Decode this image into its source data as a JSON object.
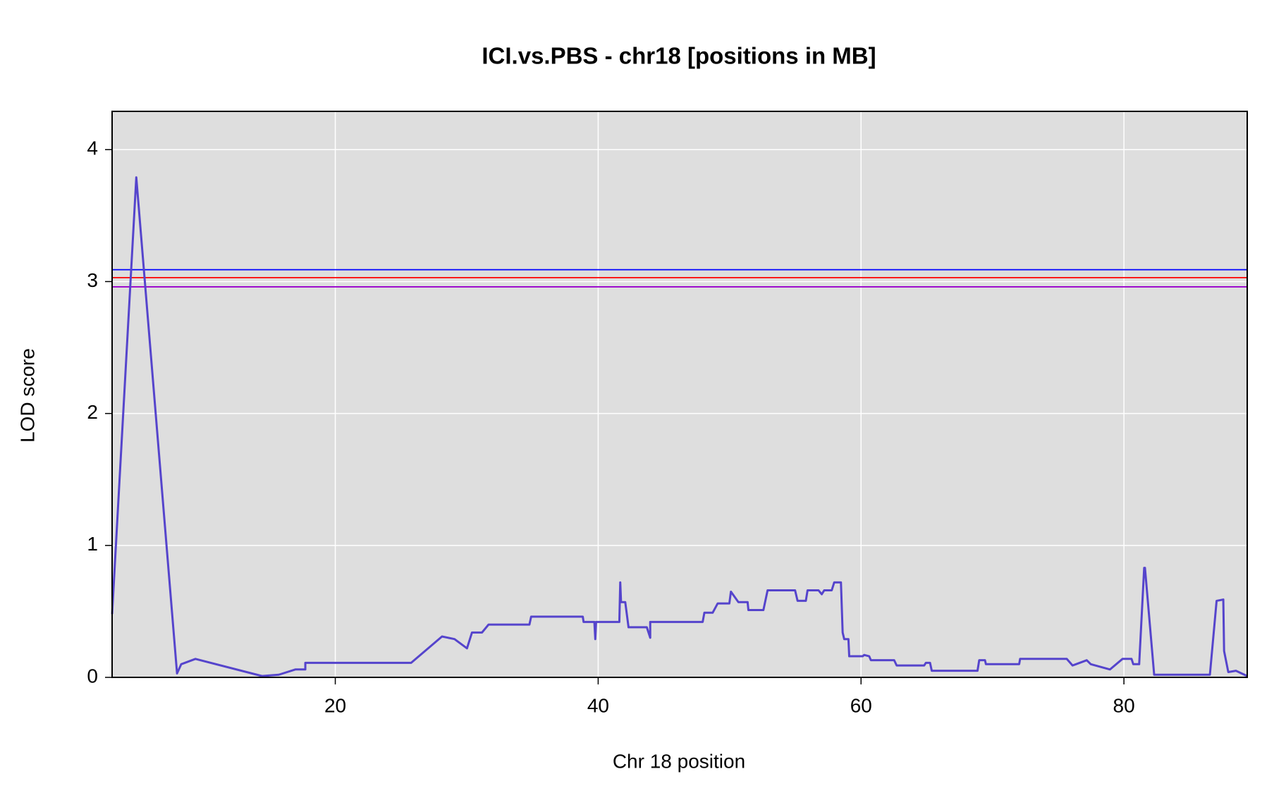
{
  "chart_data": {
    "type": "line",
    "title": "ICI.vs.PBS - chr18 [positions in MB]",
    "x_label": "Chr 18 position",
    "y_label": "LOD score",
    "x": [
      3.02,
      4.86,
      7.96,
      8.28,
      9.36,
      14.43,
      15.7,
      16.96,
      17.72,
      17.72,
      25.77,
      28.12,
      29.07,
      30.02,
      30.4,
      31.16,
      31.66,
      34.77,
      34.9,
      38.83,
      38.89,
      39.71,
      39.78,
      39.84,
      41.61,
      41.68,
      41.74,
      42.06,
      42.31,
      43.7,
      43.96,
      43.96,
      47.95,
      48.08,
      48.71,
      49.09,
      49.98,
      50.1,
      50.67,
      51.37,
      51.43,
      52.57,
      52.89,
      54.98,
      55.17,
      55.8,
      55.93,
      56.76,
      57.01,
      57.2,
      57.77,
      57.96,
      58.47,
      58.6,
      58.72,
      59.04,
      59.1,
      60.12,
      60.24,
      60.62,
      60.75,
      62.52,
      62.71,
      64.8,
      64.93,
      65.25,
      65.38,
      68.86,
      68.99,
      69.43,
      69.5,
      72.03,
      72.1,
      75.65,
      76.09,
      77.17,
      77.48,
      78.94,
      79.89,
      80.58,
      80.71,
      81.16,
      81.54,
      81.6,
      82.3,
      86.54,
      87.05,
      87.56,
      87.62,
      87.94,
      88.52,
      89.38
    ],
    "values": [
      0.48,
      3.79,
      0.03,
      0.1,
      0.14,
      0.01,
      0.02,
      0.06,
      0.06,
      0.11,
      0.11,
      0.31,
      0.29,
      0.22,
      0.34,
      0.34,
      0.4,
      0.4,
      0.46,
      0.46,
      0.42,
      0.42,
      0.29,
      0.42,
      0.42,
      0.72,
      0.57,
      0.57,
      0.38,
      0.38,
      0.3,
      0.42,
      0.42,
      0.49,
      0.49,
      0.56,
      0.56,
      0.65,
      0.57,
      0.57,
      0.51,
      0.51,
      0.66,
      0.66,
      0.58,
      0.58,
      0.66,
      0.66,
      0.63,
      0.66,
      0.66,
      0.72,
      0.72,
      0.34,
      0.29,
      0.29,
      0.16,
      0.16,
      0.17,
      0.16,
      0.13,
      0.13,
      0.09,
      0.09,
      0.11,
      0.11,
      0.05,
      0.05,
      0.13,
      0.13,
      0.1,
      0.1,
      0.14,
      0.14,
      0.09,
      0.13,
      0.1,
      0.06,
      0.14,
      0.14,
      0.1,
      0.1,
      0.83,
      0.83,
      0.02,
      0.02,
      0.58,
      0.59,
      0.2,
      0.04,
      0.05,
      0.01
    ],
    "color": "#5544cc",
    "hlines": [
      {
        "value": 3.09,
        "color": "#0000ff"
      },
      {
        "value": 3.03,
        "color": "#ff0000"
      },
      {
        "value": 2.96,
        "color": "#9900cc"
      }
    ],
    "xlim": [
      3.02,
      89.38
    ],
    "xticks": [
      20,
      40,
      60,
      80
    ],
    "ylim": [
      0,
      4.29
    ],
    "yticks": [
      0,
      1,
      2,
      3,
      4
    ],
    "grid": true,
    "background": "#dedede"
  }
}
